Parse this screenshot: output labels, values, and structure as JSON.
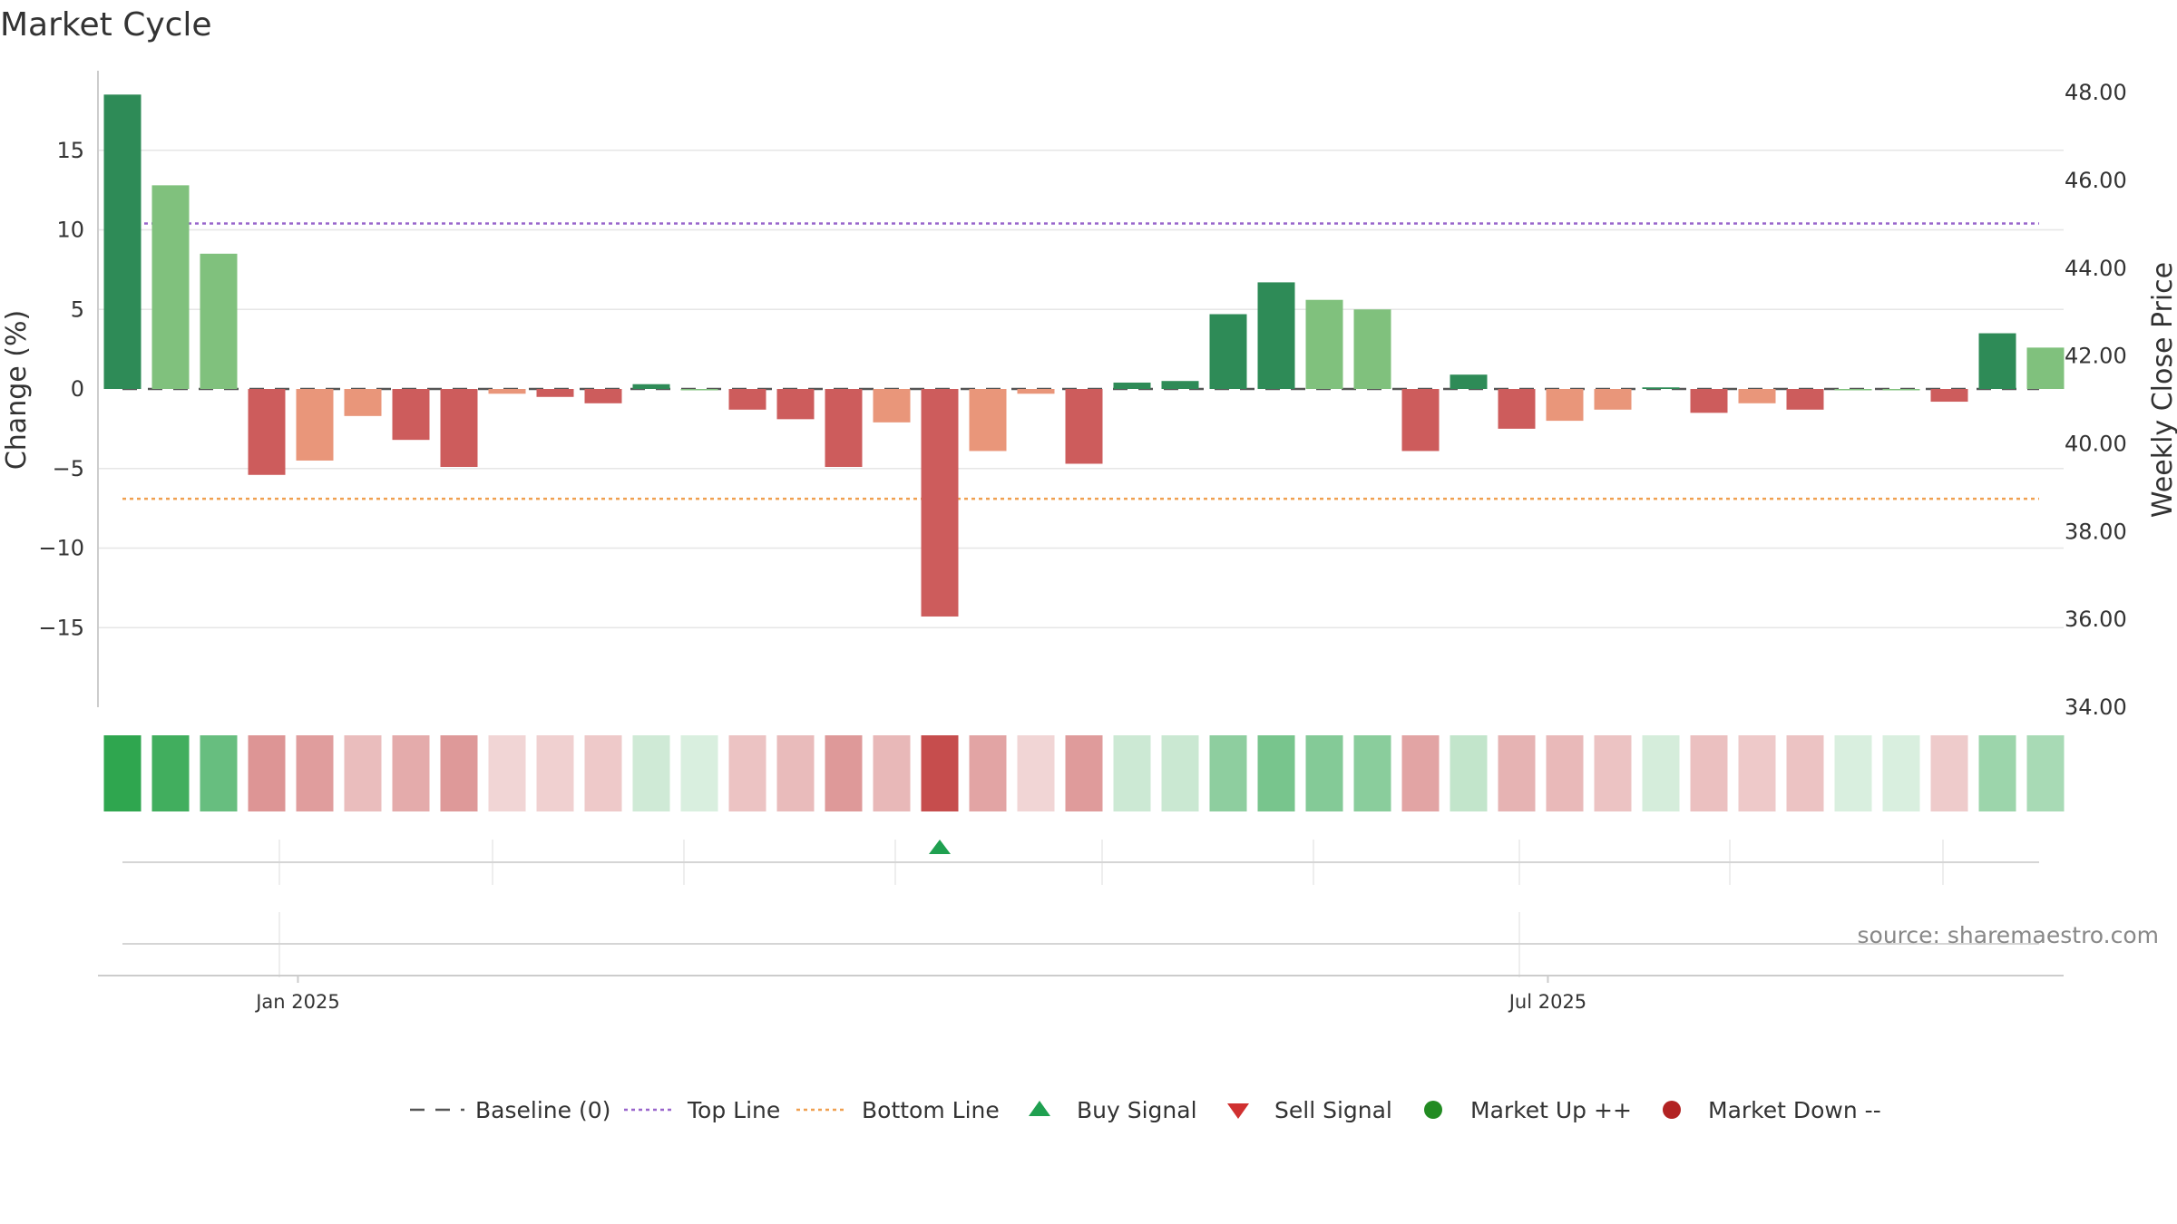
{
  "chart_data": {
    "type": "bar",
    "title": "Market Cycle",
    "ylabel_left": "Change (%)",
    "ylabel_right": "Weekly Close Price",
    "ylim_left": [
      -20,
      20
    ],
    "yticks_left": [
      15,
      10,
      5,
      0,
      -5,
      -10,
      -15
    ],
    "ytick_labels_left": [
      "15",
      "10",
      "5",
      "0",
      "−5",
      "−10",
      "−15"
    ],
    "ylim_right": [
      34.0,
      48.5
    ],
    "yticks_right": [
      48,
      46,
      44,
      42,
      40,
      38,
      36,
      34
    ],
    "ytick_labels_right": [
      "48.00",
      "46.00",
      "44.00",
      "42.00",
      "40.00",
      "38.00",
      "36.00",
      "34.00"
    ],
    "x_labels": [
      "Jan 2025",
      "Jul 2025"
    ],
    "x_label_positions": [
      3.65,
      29.65
    ],
    "values": [
      18.5,
      12.8,
      8.5,
      -5.4,
      -4.5,
      -1.7,
      -3.2,
      -4.9,
      -0.3,
      -0.5,
      -0.9,
      0.3,
      0.0,
      -1.3,
      -1.9,
      -4.9,
      -2.1,
      -14.3,
      -3.9,
      -0.3,
      -4.7,
      0.4,
      0.5,
      4.7,
      6.7,
      5.6,
      5.0,
      -3.9,
      0.9,
      -2.5,
      -2.0,
      -1.3,
      0.1,
      -1.5,
      -0.9,
      -1.3,
      0.0,
      0.0,
      -0.8,
      3.5,
      2.6
    ],
    "baseline": 0,
    "top_line": 10.4,
    "bottom_line": -6.9,
    "signals": [
      {
        "type": "buy",
        "index": 17
      }
    ],
    "grid": true,
    "legend_position": "bottom",
    "legend": {
      "baseline": "Baseline (0)",
      "top_line": "Top Line",
      "bottom_line": "Bottom Line",
      "buy": "Buy Signal",
      "sell": "Sell Signal",
      "market_up": "Market Up ++",
      "market_down": "Market Down --"
    },
    "source": "source: sharemaestro.com"
  },
  "colors": {
    "strong_up": "#2e8b57",
    "up": "#80c17d",
    "strong_down": "#cd5c5c",
    "down": "#e9967a",
    "top_line": "#9966cc",
    "bottom_line": "#f0a050",
    "baseline": "#555555",
    "buy": "#1fa050",
    "sell": "#d03030",
    "market_up_dot": "#228b22",
    "market_down_dot": "#b22222",
    "heat_up": "#2fa64f",
    "heat_down": "#c44848"
  }
}
